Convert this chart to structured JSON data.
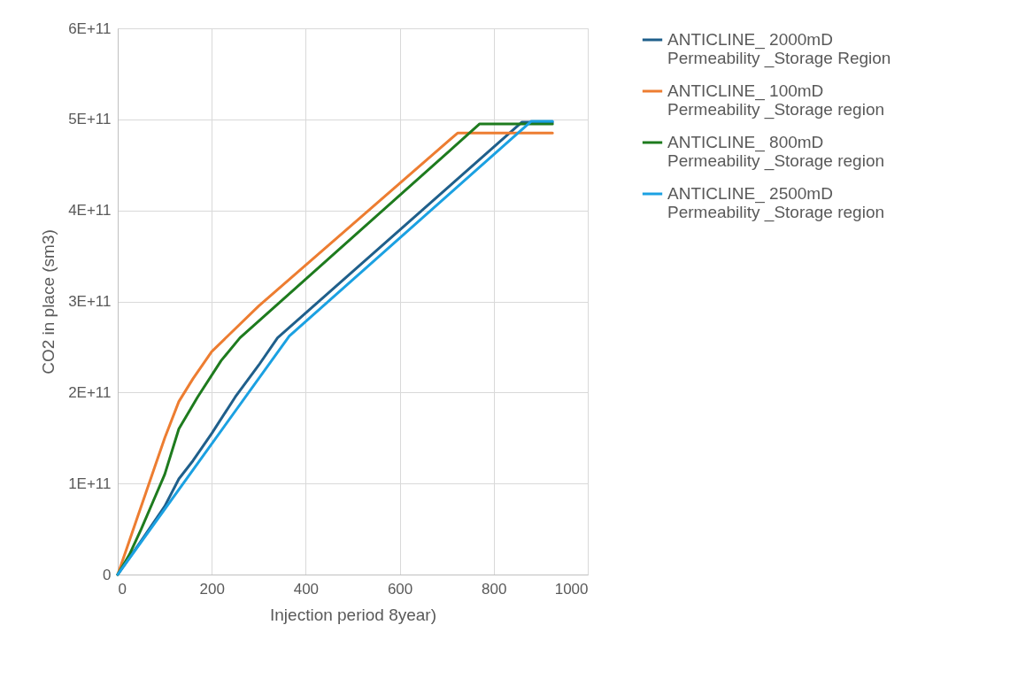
{
  "chart_data": {
    "type": "line",
    "xlabel": "Injection period 8year)",
    "ylabel": "CO2 in place (sm3)",
    "xlim": [
      0,
      1000
    ],
    "xticks": [
      0,
      200,
      400,
      600,
      800,
      1000
    ],
    "ylim": [
      0,
      600000000000
    ],
    "yticks": [
      {
        "value": 0,
        "label": "0"
      },
      {
        "value": 100000000000,
        "label": "1E+11"
      },
      {
        "value": 200000000000,
        "label": "2E+11"
      },
      {
        "value": 300000000000,
        "label": "3E+11"
      },
      {
        "value": 400000000000,
        "label": "4E+11"
      },
      {
        "value": 500000000000,
        "label": "5E+11"
      },
      {
        "value": 600000000000,
        "label": "6E+11"
      }
    ],
    "grid": true,
    "legend": "right",
    "marker": "none",
    "line_style": "solid",
    "series": [
      {
        "name": "ANTICLINE_ 2000mD Permeability _Storage Region",
        "color": "#1f5f8b",
        "x": [
          0,
          50,
          100,
          130,
          160,
          200,
          250,
          300,
          340,
          860,
          925
        ],
        "values": [
          0,
          37000000000,
          75000000000,
          105000000000,
          125000000000,
          155000000000,
          195000000000,
          230000000000,
          260000000000,
          497000000000,
          497000000000
        ]
      },
      {
        "name": "ANTICLINE_ 100mD Permeability _Storage region",
        "color": "#ed7d31",
        "x": [
          0,
          20,
          40,
          60,
          80,
          100,
          130,
          160,
          200,
          240,
          300,
          723,
          925
        ],
        "values": [
          0,
          30000000000,
          60000000000,
          90000000000,
          120000000000,
          150000000000,
          190000000000,
          215000000000,
          245000000000,
          265000000000,
          295000000000,
          485000000000,
          485000000000
        ]
      },
      {
        "name": "ANTICLINE_ 800mD Permeability _Storage region",
        "color": "#1e7b1e",
        "x": [
          0,
          25,
          50,
          75,
          100,
          130,
          170,
          220,
          260,
          770,
          925
        ],
        "values": [
          0,
          22000000000,
          50000000000,
          80000000000,
          110000000000,
          160000000000,
          195000000000,
          235000000000,
          260000000000,
          495000000000,
          495000000000
        ]
      },
      {
        "name": "ANTICLINE_ 2500mD Permeability _Storage region",
        "color": "#1ba1e2",
        "x": [
          0,
          365,
          880,
          925
        ],
        "values": [
          0,
          262000000000,
          498000000000,
          498000000000
        ]
      }
    ]
  }
}
